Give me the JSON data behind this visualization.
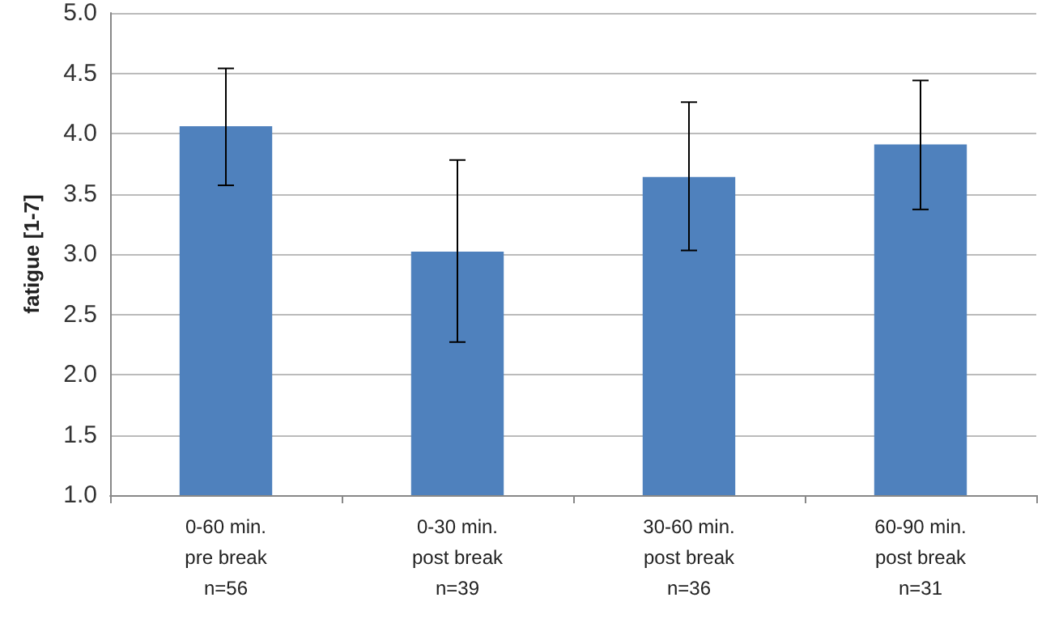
{
  "chart_data": {
    "type": "bar",
    "ylabel": "fatigue [1-7]",
    "categories": [
      "0-60 min.\npre break\nn=56",
      "0-30 min.\npost break\nn=39",
      "30-60 min.\npost break\nn=36",
      "60-90 min.\npost break\nn=31"
    ],
    "values": [
      4.06,
      3.02,
      3.64,
      3.91
    ],
    "errors": [
      [
        3.57,
        4.54
      ],
      [
        2.27,
        3.78
      ],
      [
        3.03,
        4.26
      ],
      [
        3.37,
        4.44
      ]
    ],
    "color": "#4f81bd",
    "ylim": [
      1,
      5
    ],
    "yticks": [
      {
        "value": 1,
        "label": "1.0"
      },
      1.5,
      {
        "value": 2,
        "label": "2.0"
      },
      2.5,
      {
        "value": 3,
        "label": "3.0"
      },
      3.5,
      {
        "value": 4,
        "label": "4.0"
      },
      4.5,
      {
        "value": 5,
        "label": "5.0"
      }
    ],
    "grid": "y"
  }
}
